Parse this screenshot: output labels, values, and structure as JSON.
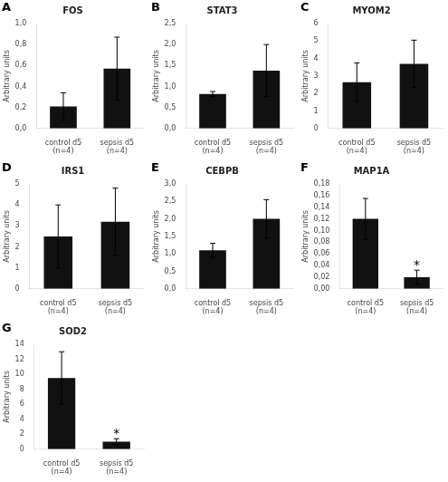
{
  "chart_data": [
    {
      "type": "bar",
      "panel_label": "A",
      "title": "FOS",
      "ylabel": "Arbitrary units",
      "categories": [
        "control d5\n(n=4)",
        "sepsis d5\n(n=4)"
      ],
      "values": [
        0.21,
        0.57
      ],
      "errors": [
        0.13,
        0.3
      ],
      "color": "#111111",
      "ylim": [
        0,
        1.0
      ],
      "yticks": [
        {
          "value": 0.0,
          "label": "0,0"
        },
        {
          "value": 0.2,
          "label": "0,2"
        },
        {
          "value": 0.4,
          "label": "0,4"
        },
        {
          "value": 0.6,
          "label": "0,6"
        },
        {
          "value": 0.8,
          "label": "0,8"
        },
        {
          "value": 1.0,
          "label": "1,0"
        }
      ],
      "grid": false
    },
    {
      "type": "bar",
      "panel_label": "B",
      "title": "STAT3",
      "ylabel": "Arbitrary units",
      "categories": [
        "control d5\n(n=4)",
        "sepsis d5\n(n=4)"
      ],
      "values": [
        0.82,
        1.38
      ],
      "errors": [
        0.06,
        0.62
      ],
      "color": "#111111",
      "ylim": [
        0,
        2.5
      ],
      "yticks": [
        {
          "value": 0.0,
          "label": "0,0"
        },
        {
          "value": 0.5,
          "label": "0,5"
        },
        {
          "value": 1.0,
          "label": "1,0"
        },
        {
          "value": 1.5,
          "label": "1,5"
        },
        {
          "value": 2.0,
          "label": "2,0"
        },
        {
          "value": 2.5,
          "label": "2,5"
        }
      ],
      "grid": false
    },
    {
      "type": "bar",
      "panel_label": "C",
      "title": "MYOM2",
      "ylabel": "Arbitrary units",
      "categories": [
        "control d5\n(n=4)",
        "sepsis d5\n(n=4)"
      ],
      "values": [
        2.65,
        3.7
      ],
      "errors": [
        1.1,
        1.35
      ],
      "color": "#111111",
      "ylim": [
        0,
        6
      ],
      "yticks": [
        0,
        1,
        2,
        3,
        4,
        5,
        6
      ],
      "grid": false
    },
    {
      "type": "bar",
      "panel_label": "D",
      "title": "IRS1",
      "ylabel": "Arbitrary units",
      "categories": [
        "control d5\n(n=4)",
        "sepsis d5\n(n=4)"
      ],
      "values": [
        2.5,
        3.2
      ],
      "errors": [
        1.5,
        1.6
      ],
      "color": "#111111",
      "ylim": [
        0,
        5
      ],
      "yticks": [
        0,
        1,
        2,
        3,
        4,
        5
      ],
      "grid": false
    },
    {
      "type": "bar",
      "panel_label": "E",
      "title": "CEBPB",
      "ylabel": "Arbitrary units",
      "categories": [
        "control d5\n(n=4)",
        "sepsis d5\n(n=4)"
      ],
      "values": [
        1.1,
        2.0
      ],
      "errors": [
        0.2,
        0.55
      ],
      "color": "#111111",
      "ylim": [
        0,
        3.0
      ],
      "yticks": [
        {
          "value": 0.0,
          "label": "0,0"
        },
        {
          "value": 0.5,
          "label": "0,5"
        },
        {
          "value": 1.0,
          "label": "1,0"
        },
        {
          "value": 1.5,
          "label": "1,5"
        },
        {
          "value": 2.0,
          "label": "2,0"
        },
        {
          "value": 2.5,
          "label": "2,5"
        },
        {
          "value": 3.0,
          "label": "3,0"
        }
      ],
      "grid": false
    },
    {
      "type": "bar",
      "panel_label": "F",
      "title": "MAP1A",
      "ylabel": "Arbitrary units",
      "categories": [
        "control d5\n(n=4)",
        "sepsis d5\n(n=4)"
      ],
      "values": [
        0.12,
        0.02
      ],
      "errors": [
        0.035,
        0.012
      ],
      "color": "#111111",
      "ylim": [
        0,
        0.18
      ],
      "yticks": [
        {
          "value": 0.0,
          "label": "0,00"
        },
        {
          "value": 0.02,
          "label": "0,02"
        },
        {
          "value": 0.04,
          "label": "0,04"
        },
        {
          "value": 0.06,
          "label": "0,06"
        },
        {
          "value": 0.08,
          "label": "0,08"
        },
        {
          "value": 0.1,
          "label": "0,10"
        },
        {
          "value": 0.12,
          "label": "0,12"
        },
        {
          "value": 0.14,
          "label": "0,14"
        },
        {
          "value": 0.16,
          "label": "0,16"
        },
        {
          "value": 0.18,
          "label": "0,18"
        }
      ],
      "annotations": [
        {
          "text": "*",
          "category": "sepsis d5\n(n=4)"
        }
      ],
      "grid": false
    },
    {
      "type": "bar",
      "panel_label": "G",
      "title": "SOD2",
      "ylabel": "Arbitrary units",
      "categories": [
        "control d5\n(n=4)",
        "sepsis d5\n(n=4)"
      ],
      "values": [
        9.5,
        1.0
      ],
      "errors": [
        3.5,
        0.4
      ],
      "color": "#111111",
      "ylim": [
        0,
        14
      ],
      "yticks": [
        0,
        2,
        4,
        6,
        8,
        10,
        12,
        14
      ],
      "annotations": [
        {
          "text": "*",
          "category": "sepsis d5\n(n=4)"
        }
      ],
      "grid": false
    }
  ]
}
